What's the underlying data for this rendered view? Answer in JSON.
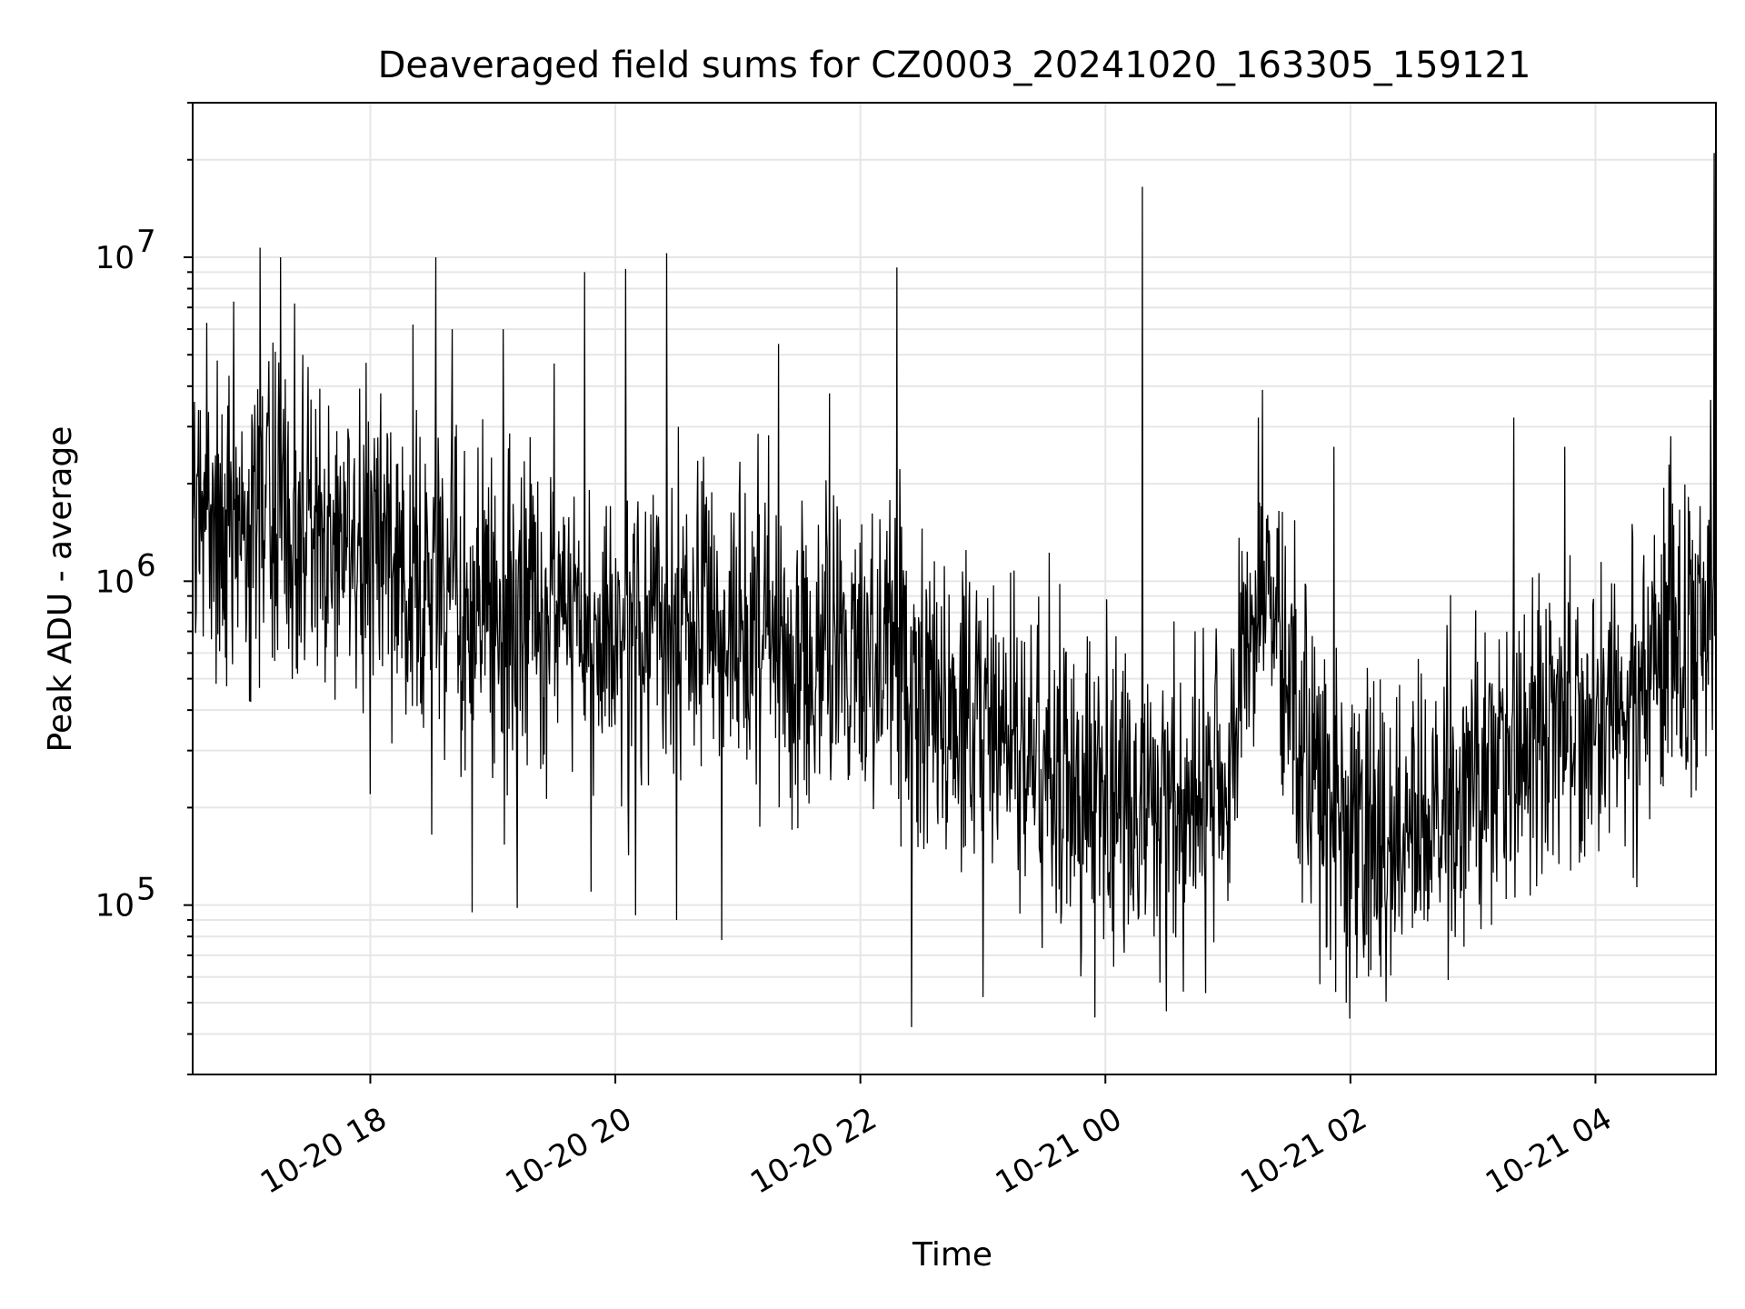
{
  "chart_data": {
    "type": "line",
    "title": "Deaveraged field sums for CZ0003_20241020_163305_159121",
    "xlabel": "Time",
    "ylabel": "Peak ADU - average",
    "yscale": "log",
    "ylim": [
      30000,
      30000000
    ],
    "xlim": [
      "2024-10-20 16:33",
      "2024-10-21 04:59"
    ],
    "grid": true,
    "legend": "none",
    "line_color": "#000000",
    "x_ticks": [
      {
        "value": "2024-10-20 18:00",
        "label": "10-20 18"
      },
      {
        "value": "2024-10-20 20:00",
        "label": "10-20 20"
      },
      {
        "value": "2024-10-20 22:00",
        "label": "10-20 22"
      },
      {
        "value": "2024-10-21 00:00",
        "label": "10-21 00"
      },
      {
        "value": "2024-10-21 02:00",
        "label": "10-21 02"
      },
      {
        "value": "2024-10-21 04:00",
        "label": "10-21 04"
      }
    ],
    "y_ticks": [
      {
        "value": 100000,
        "base": "10",
        "exp": "5"
      },
      {
        "value": 1000000,
        "base": "10",
        "exp": "6"
      },
      {
        "value": 10000000,
        "base": "10",
        "exp": "7"
      }
    ],
    "series": [
      {
        "trend_x": [
          "2024-10-20 16:33",
          "2024-10-20 17:00",
          "2024-10-20 17:30",
          "2024-10-20 18:00",
          "2024-10-20 18:30",
          "2024-10-20 19:00",
          "2024-10-20 20:00",
          "2024-10-20 21:00",
          "2024-10-20 22:00",
          "2024-10-20 23:00",
          "2024-10-21 00:00",
          "2024-10-21 00:40",
          "2024-10-21 01:00",
          "2024-10-21 01:10",
          "2024-10-21 01:20",
          "2024-10-21 01:40",
          "2024-10-21 02:00",
          "2024-10-21 02:30",
          "2024-10-21 03:00",
          "2024-10-21 03:30",
          "2024-10-21 04:00",
          "2024-10-21 04:30",
          "2024-10-21 04:59"
        ],
        "trend_y": [
          1500000,
          1500000,
          1400000,
          1200000,
          1000000,
          800000,
          750000,
          700000,
          550000,
          380000,
          230000,
          200000,
          220000,
          900000,
          900000,
          250000,
          160000,
          180000,
          240000,
          330000,
          420000,
          520000,
          800000
        ],
        "spikes": [
          {
            "x": "2024-10-20 16:45",
            "y": 4800000
          },
          {
            "x": "2024-10-20 16:53",
            "y": 7300000
          },
          {
            "x": "2024-10-20 17:06",
            "y": 10700000
          },
          {
            "x": "2024-10-20 17:16",
            "y": 10000000
          },
          {
            "x": "2024-10-20 17:23",
            "y": 7200000
          },
          {
            "x": "2024-10-20 18:05",
            "y": 3800000
          },
          {
            "x": "2024-10-20 18:21",
            "y": 6200000
          },
          {
            "x": "2024-10-20 18:32",
            "y": 10000000
          },
          {
            "x": "2024-10-20 18:40",
            "y": 6000000
          },
          {
            "x": "2024-10-20 19:05",
            "y": 6000000
          },
          {
            "x": "2024-10-20 19:30",
            "y": 4700000
          },
          {
            "x": "2024-10-20 19:45",
            "y": 9000000
          },
          {
            "x": "2024-10-20 20:05",
            "y": 9200000
          },
          {
            "x": "2024-10-20 20:25",
            "y": 10300000
          },
          {
            "x": "2024-10-20 21:20",
            "y": 5400000
          },
          {
            "x": "2024-10-20 21:45",
            "y": 3800000
          },
          {
            "x": "2024-10-20 22:18",
            "y": 9300000
          },
          {
            "x": "2024-10-21 00:18",
            "y": 16500000
          },
          {
            "x": "2024-10-21 01:15",
            "y": 3200000
          },
          {
            "x": "2024-10-21 01:52",
            "y": 2600000
          },
          {
            "x": "2024-10-21 03:20",
            "y": 3200000
          },
          {
            "x": "2024-10-21 03:45",
            "y": 2600000
          },
          {
            "x": "2024-10-21 04:37",
            "y": 2800000
          },
          {
            "x": "2024-10-21 04:58",
            "y": 21000000
          }
        ],
        "dips": [
          {
            "x": "2024-10-20 18:00",
            "y": 220000
          },
          {
            "x": "2024-10-20 18:30",
            "y": 165000
          },
          {
            "x": "2024-10-20 18:50",
            "y": 95000
          },
          {
            "x": "2024-10-20 19:12",
            "y": 98000
          },
          {
            "x": "2024-10-20 19:48",
            "y": 110000
          },
          {
            "x": "2024-10-20 20:10",
            "y": 93000
          },
          {
            "x": "2024-10-20 20:30",
            "y": 90000
          },
          {
            "x": "2024-10-20 20:52",
            "y": 78000
          },
          {
            "x": "2024-10-20 22:25",
            "y": 42000
          },
          {
            "x": "2024-10-20 23:00",
            "y": 52000
          },
          {
            "x": "2024-10-20 23:55",
            "y": 45000
          },
          {
            "x": "2024-10-21 00:30",
            "y": 47000
          },
          {
            "x": "2024-10-21 01:45",
            "y": 57000
          },
          {
            "x": "2024-10-21 01:58",
            "y": 50000
          },
          {
            "x": "2024-10-21 02:15",
            "y": 60000
          }
        ]
      }
    ]
  }
}
